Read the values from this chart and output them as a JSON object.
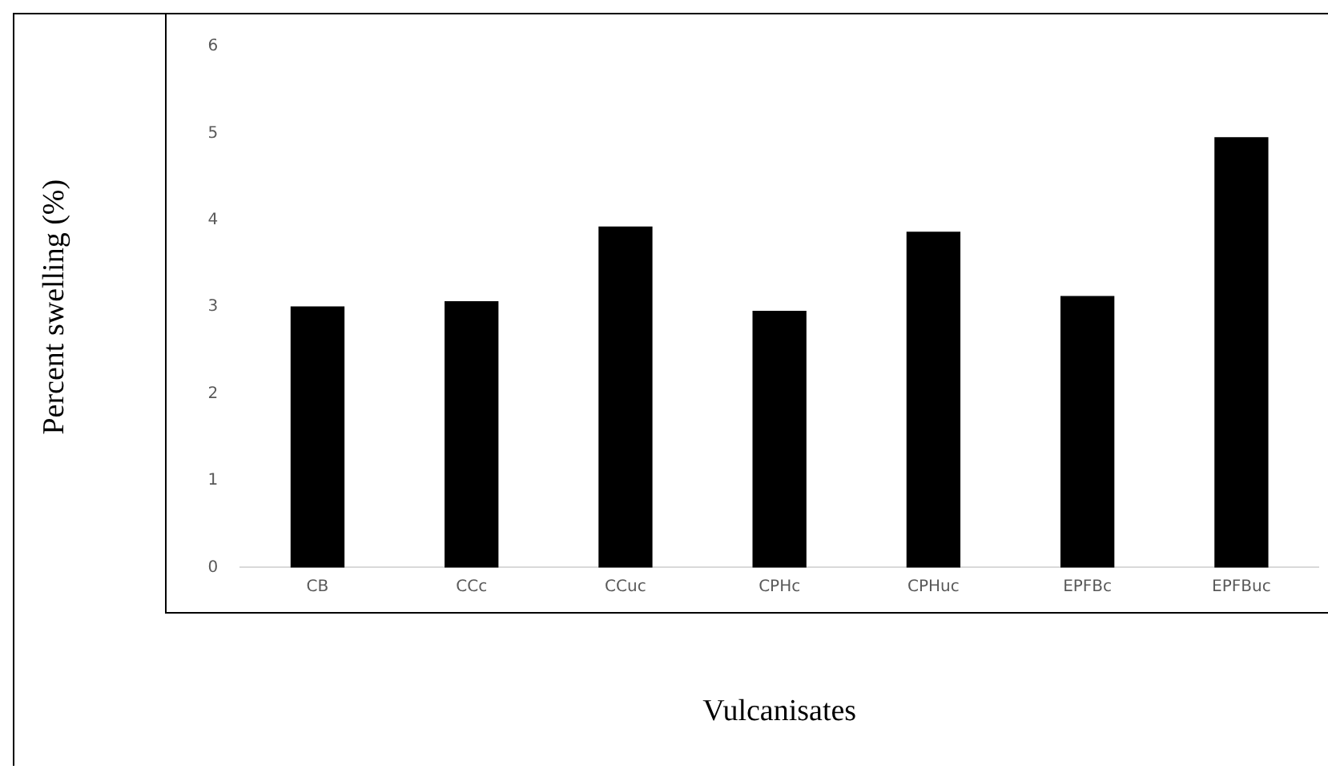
{
  "chart_data": {
    "type": "bar",
    "xlabel": "Vulcanisates",
    "ylabel": "Percent swelling (%)",
    "categories": [
      "CB",
      "CCc",
      "CCuc",
      "CPHc",
      "CPHuc",
      "EPFBc",
      "EPFBuc"
    ],
    "values": [
      3.0,
      3.06,
      3.92,
      2.95,
      3.86,
      3.12,
      4.95
    ],
    "color": "#000000",
    "ylim": [
      0,
      6
    ],
    "yticks": [
      0,
      1,
      2,
      3,
      4,
      5,
      6
    ],
    "grid": false,
    "legend": false
  }
}
